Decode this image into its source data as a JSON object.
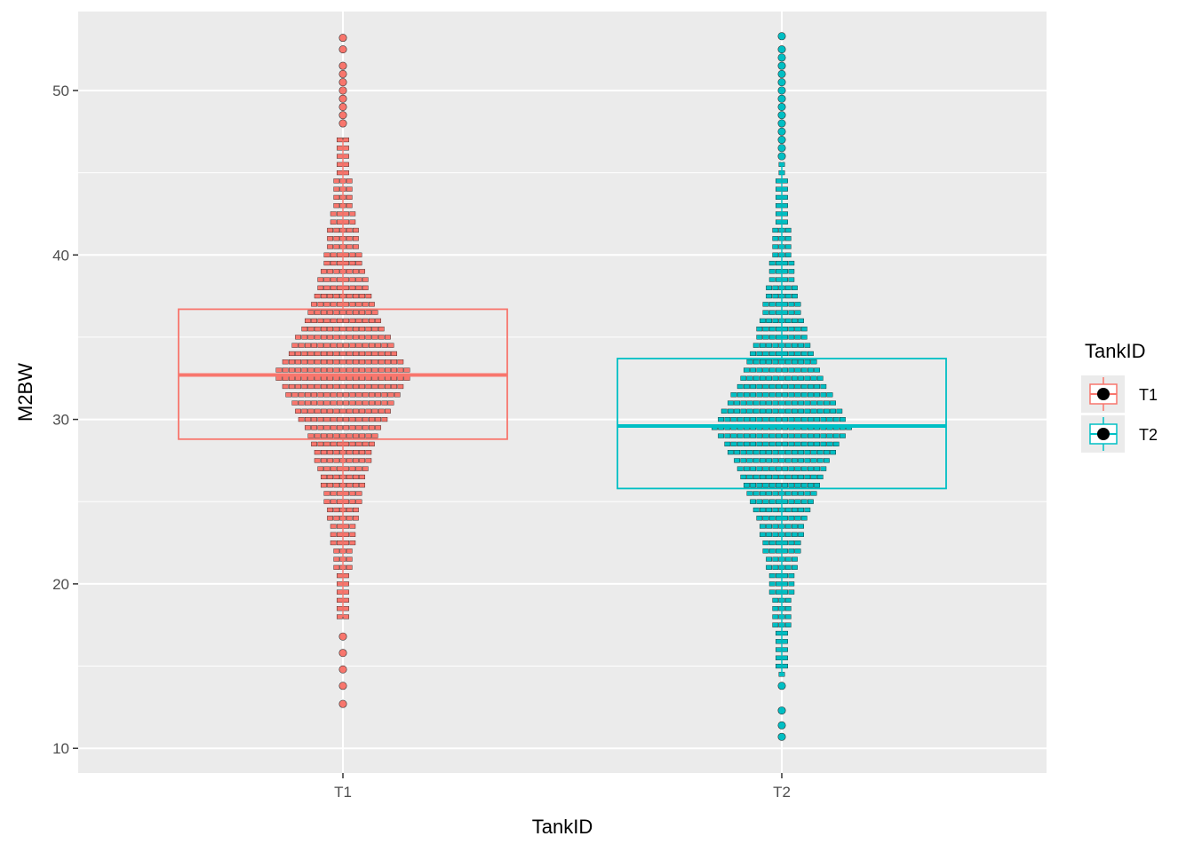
{
  "chart_data": {
    "type": "box",
    "overlay": "dotplot",
    "xlabel": "TankID",
    "ylabel": "M2BW",
    "categories": [
      "T1",
      "T2"
    ],
    "ylim": [
      8.5,
      54.8
    ],
    "yticks": [
      10,
      20,
      30,
      40,
      50
    ],
    "grid": true,
    "legend": {
      "title": "TankID",
      "position": "right",
      "entries": [
        "T1",
        "T2"
      ]
    },
    "colors": {
      "T1": "#F8766D",
      "T2": "#00BFC4",
      "panel": "#EBEBEB",
      "grid": "#FFFFFF"
    },
    "series": [
      {
        "name": "T1",
        "box": {
          "q1": 28.8,
          "median": 32.7,
          "q3": 36.7,
          "whisker_low": 18.0,
          "whisker_high": 47.0
        },
        "outliers": [
          12.7,
          13.8,
          14.8,
          15.8,
          16.8,
          48.0,
          48.5,
          49.0,
          49.5,
          50.0,
          50.5,
          51.0,
          51.5,
          52.5,
          53.2
        ]
      },
      {
        "name": "T2",
        "box": {
          "q1": 25.8,
          "median": 29.6,
          "q3": 33.7,
          "whisker_low": 14.5,
          "whisker_high": 45.5
        },
        "outliers": [
          10.7,
          11.4,
          12.3,
          13.8,
          46.0,
          46.5,
          47.0,
          47.5,
          48.0,
          48.5,
          49.0,
          49.5,
          50.0,
          50.5,
          51.0,
          51.5,
          52.0,
          52.5,
          53.3
        ]
      }
    ]
  }
}
